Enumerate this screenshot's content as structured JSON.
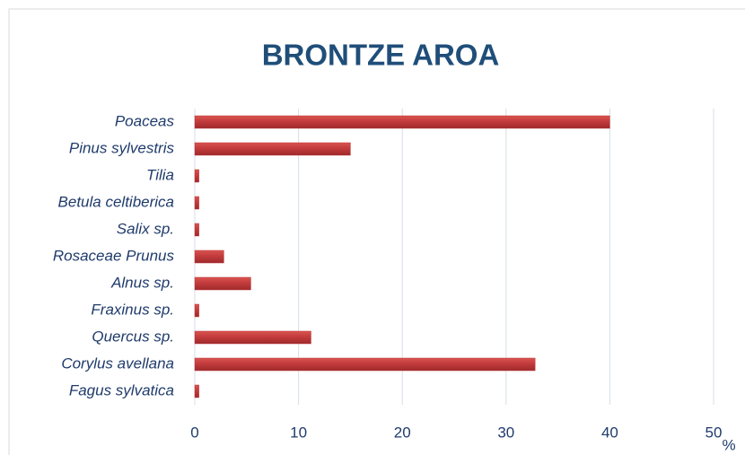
{
  "chart_data": {
    "type": "bar",
    "orientation": "horizontal",
    "title": "BRONTZE AROA",
    "x_label": "%",
    "categories": [
      "Poaceas",
      "Pinus sylvestris",
      "Tilia",
      "Betula celtiberica",
      "Salix sp.",
      "Rosaceae Prunus",
      "Alnus sp.",
      "Fraxinus sp.",
      "Quercus sp.",
      "Corylus avellana",
      "Fagus sylvatica"
    ],
    "values": [
      40,
      15,
      0.4,
      0.4,
      0.4,
      2.8,
      5.4,
      0.4,
      11.2,
      32.8,
      0.4
    ],
    "color": "#c0393b",
    "xlim": [
      0,
      50
    ],
    "xticks": [
      0,
      10,
      20,
      30,
      40,
      50
    ],
    "grid": true
  }
}
